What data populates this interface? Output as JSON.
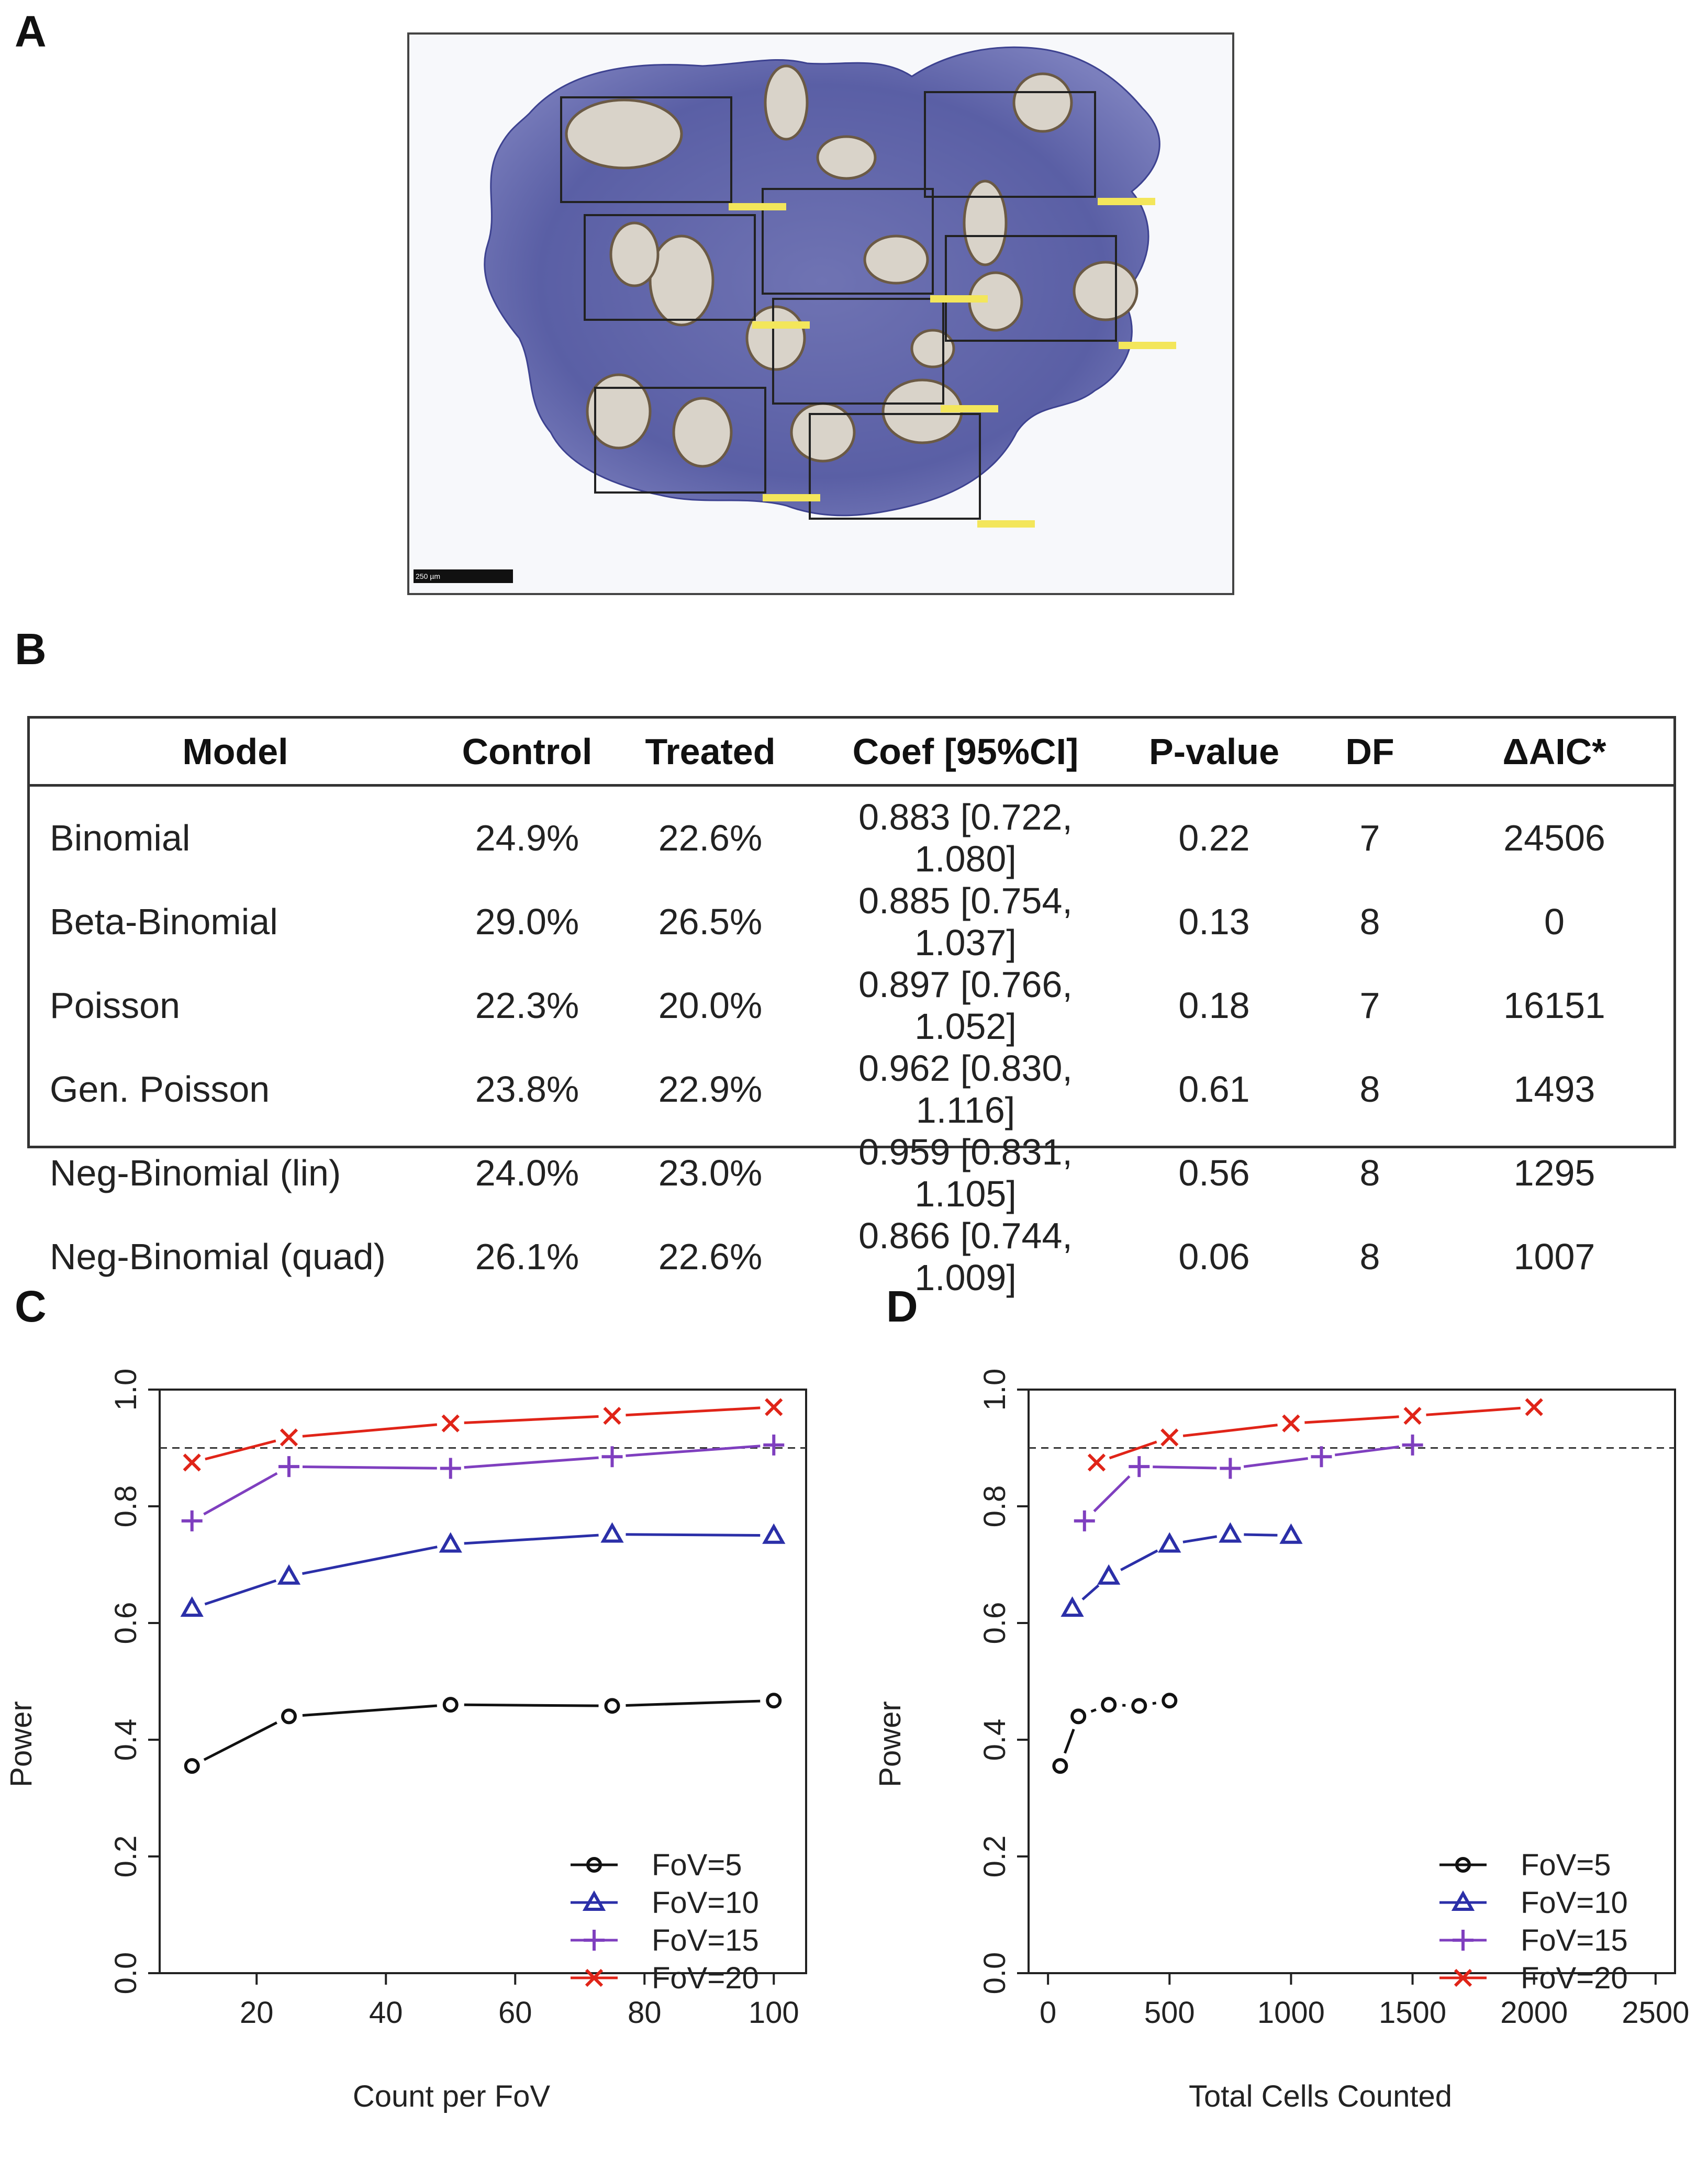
{
  "panels": {
    "a": "A",
    "b": "B",
    "c": "C",
    "d": "D"
  },
  "image_a": {
    "description_icon": "tissue-section-micrograph",
    "scale_bar_label": "250 µm"
  },
  "table": {
    "headers": [
      "Model",
      "Control",
      "Treated",
      "Coef [95%CI]",
      "P-value",
      "DF",
      "ΔAIC*"
    ],
    "rows": [
      [
        "Binomial",
        "24.9%",
        "22.6%",
        "0.883 [0.722, 1.080]",
        "0.22",
        "7",
        "24506"
      ],
      [
        "Beta-Binomial",
        "29.0%",
        "26.5%",
        "0.885 [0.754, 1.037]",
        "0.13",
        "8",
        "0"
      ],
      [
        "Poisson",
        "22.3%",
        "20.0%",
        "0.897 [0.766, 1.052]",
        "0.18",
        "7",
        "16151"
      ],
      [
        "Gen. Poisson",
        "23.8%",
        "22.9%",
        "0.962 [0.830, 1.116]",
        "0.61",
        "8",
        "1493"
      ],
      [
        "Neg-Binomial (lin)",
        "24.0%",
        "23.0%",
        "0.959 [0.831, 1.105]",
        "0.56",
        "8",
        "1295"
      ],
      [
        "Neg-Binomial (quad)",
        "26.1%",
        "22.6%",
        "0.866 [0.744, 1.009]",
        "0.06",
        "8",
        "1007"
      ]
    ]
  },
  "colors": {
    "fov5": "#111111",
    "fov10": "#2b2fa8",
    "fov15": "#7f3fbf",
    "fov20": "#e02418",
    "reference": "#333333"
  },
  "chart_data": [
    {
      "id": "C",
      "type": "line",
      "xlabel": "Count per FoV",
      "ylabel": "Power",
      "xlim": [
        5,
        105
      ],
      "ylim": [
        0,
        1.0
      ],
      "xticks": [
        20,
        40,
        60,
        80,
        100
      ],
      "yticks": [
        0.0,
        0.2,
        0.4,
        0.6,
        0.8,
        1.0
      ],
      "reference_line": 0.9,
      "legend_position": "bottom-right",
      "series": [
        {
          "name": "FoV=5",
          "marker": "circle",
          "x": [
            10,
            25,
            50,
            75,
            100
          ],
          "y": [
            0.355,
            0.44,
            0.46,
            0.458,
            0.467
          ]
        },
        {
          "name": "FoV=10",
          "marker": "triangle",
          "x": [
            10,
            25,
            50,
            75,
            100
          ],
          "y": [
            0.625,
            0.68,
            0.735,
            0.752,
            0.75
          ]
        },
        {
          "name": "FoV=15",
          "marker": "plus",
          "x": [
            10,
            25,
            50,
            75,
            100
          ],
          "y": [
            0.775,
            0.868,
            0.865,
            0.885,
            0.905
          ]
        },
        {
          "name": "FoV=20",
          "marker": "cross",
          "x": [
            10,
            25,
            50,
            75,
            100
          ],
          "y": [
            0.875,
            0.918,
            0.942,
            0.955,
            0.97
          ]
        }
      ]
    },
    {
      "id": "D",
      "type": "line",
      "xlabel": "Total Cells Counted",
      "ylabel": "Power",
      "xlim": [
        -80,
        2580
      ],
      "ylim": [
        0,
        1.0
      ],
      "xticks": [
        0,
        500,
        1000,
        1500,
        2000,
        2500
      ],
      "yticks": [
        0.0,
        0.2,
        0.4,
        0.6,
        0.8,
        1.0
      ],
      "reference_line": 0.9,
      "legend_position": "bottom-right",
      "series": [
        {
          "name": "FoV=5",
          "marker": "circle",
          "x": [
            50,
            125,
            250,
            375,
            500
          ],
          "y": [
            0.355,
            0.44,
            0.46,
            0.458,
            0.467
          ]
        },
        {
          "name": "FoV=10",
          "marker": "triangle",
          "x": [
            100,
            250,
            500,
            750,
            1000
          ],
          "y": [
            0.625,
            0.68,
            0.735,
            0.752,
            0.75
          ]
        },
        {
          "name": "FoV=15",
          "marker": "plus",
          "x": [
            150,
            375,
            750,
            1125,
            1500
          ],
          "y": [
            0.775,
            0.868,
            0.865,
            0.885,
            0.905
          ]
        },
        {
          "name": "FoV=20",
          "marker": "cross",
          "x": [
            200,
            500,
            1000,
            1500,
            2000
          ],
          "y": [
            0.875,
            0.918,
            0.942,
            0.955,
            0.97
          ]
        }
      ]
    }
  ]
}
